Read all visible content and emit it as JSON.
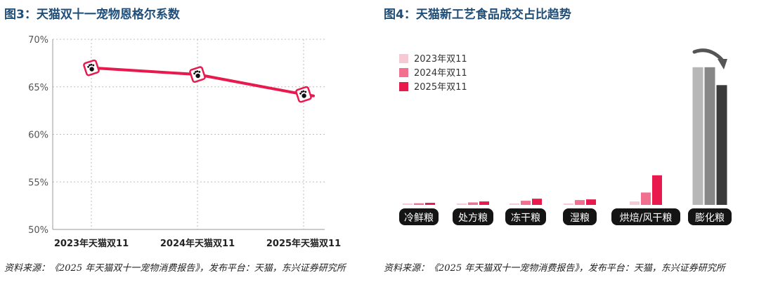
{
  "left": {
    "title": "图3：天猫双十一宠物恩格尔系数",
    "source": "资料来源：《2025 年天猫双十一宠物消费报告》，发布平台：天猫，东兴证券研究所",
    "chart_data": {
      "type": "line",
      "title": "图3：天猫双十一宠物恩格尔系数",
      "categories": [
        "2023年天猫双11",
        "2024年天猫双11",
        "2025年天猫双11"
      ],
      "values": [
        67.0,
        66.3,
        64.2
      ],
      "ylim": [
        50,
        70
      ],
      "yticks": [
        50,
        55,
        60,
        65,
        70
      ],
      "ytick_labels": [
        "50%",
        "55%",
        "60%",
        "65%",
        "70%"
      ],
      "grid": "dotted",
      "marker": "paw-print-badge",
      "color": "#e8194d"
    }
  },
  "right": {
    "title": "图4：天猫新工艺食品成交占比趋势",
    "source": "资料来源：《2025 年天猫双十一宠物消费报告》，发布平台：天猫，东兴证券研究所",
    "chart_data": {
      "type": "bar",
      "title": "图4：天猫新工艺食品成交占比趋势",
      "categories": [
        "冷鲜粮",
        "处方粮",
        "冻干粮",
        "湿粮",
        "烘焙/风干粮",
        "膨化粮"
      ],
      "series": [
        {
          "name": "2023年双11",
          "values": [
            1.0,
            1.0,
            1.0,
            1.0,
            2.5,
            100
          ]
        },
        {
          "name": "2024年双11",
          "values": [
            1.2,
            1.8,
            3.0,
            3.5,
            9.0,
            100
          ]
        },
        {
          "name": "2025年双11",
          "values": [
            1.5,
            2.5,
            4.5,
            4.0,
            21.5,
            87
          ]
        }
      ],
      "ylim": [
        0,
        105
      ],
      "legend": "top-left",
      "colors": {
        "2023年双11": "#f7c9d4",
        "2024年双11": "#f2708f",
        "2025年双11": "#e8194d",
        "puffed_2023": "#b7b7b7",
        "puffed_2024": "#878787",
        "puffed_2025": "#3a3a3a"
      },
      "annotation_icon": "curved-down-arrow-icon"
    }
  }
}
